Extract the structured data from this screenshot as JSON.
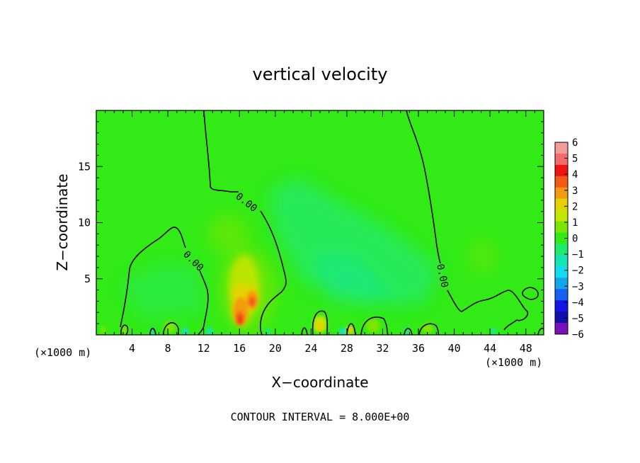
{
  "chart_data": {
    "type": "heatmap",
    "title": "vertical velocity",
    "xlabel": "X−coordinate",
    "ylabel": "Z−coordinate",
    "x_unit_left": "(×1000 m)",
    "x_unit_right": "(×1000 m)",
    "xlim": [
      0,
      50
    ],
    "ylim": [
      0,
      20
    ],
    "xticks": [
      4,
      8,
      12,
      16,
      20,
      24,
      28,
      32,
      36,
      40,
      44,
      48
    ],
    "yticks": [
      5,
      10,
      15
    ],
    "colorbar": {
      "ticks": [
        6,
        5,
        4,
        3,
        2,
        1,
        0,
        -1,
        -2,
        -3,
        -4,
        -5,
        -6
      ],
      "tick_labels": [
        "6",
        "5",
        "4",
        "3",
        "2",
        "1",
        "0",
        "−1",
        "−2",
        "−3",
        "−4",
        "−5",
        "−6"
      ],
      "colors": [
        "#f39a9a",
        "#f26c6c",
        "#ef1414",
        "#f55a14",
        "#f39a10",
        "#e6d100",
        "#c2e600",
        "#7ce600",
        "#31ea16",
        "#1fea6c",
        "#12e6b5",
        "#12dcf0",
        "#15a5ee",
        "#1560ee",
        "#1515e6",
        "#1010a8",
        "#7a10b8"
      ]
    },
    "contour_interval": "CONTOUR INTERVAL = 8.000E+00",
    "contour_labels": [
      "0.00",
      "0.00",
      "0.00"
    ],
    "background_level": 0,
    "features": [
      {
        "name": "updraft core",
        "x": 16.4,
        "z": 2.5,
        "value": 4.5
      },
      {
        "name": "updraft core upper",
        "x": 17.2,
        "z": 3.2,
        "value": 4.0
      },
      {
        "name": "updraft plume",
        "x": 15.5,
        "z": 6.0,
        "value": 1.5
      },
      {
        "name": "weak downdraft band",
        "x": 30,
        "z": 7,
        "value": -0.6
      },
      {
        "name": "weak updraft",
        "x": 43,
        "z": 7,
        "value": 0.6
      }
    ],
    "grid": false,
    "legend": "colorbar right"
  }
}
